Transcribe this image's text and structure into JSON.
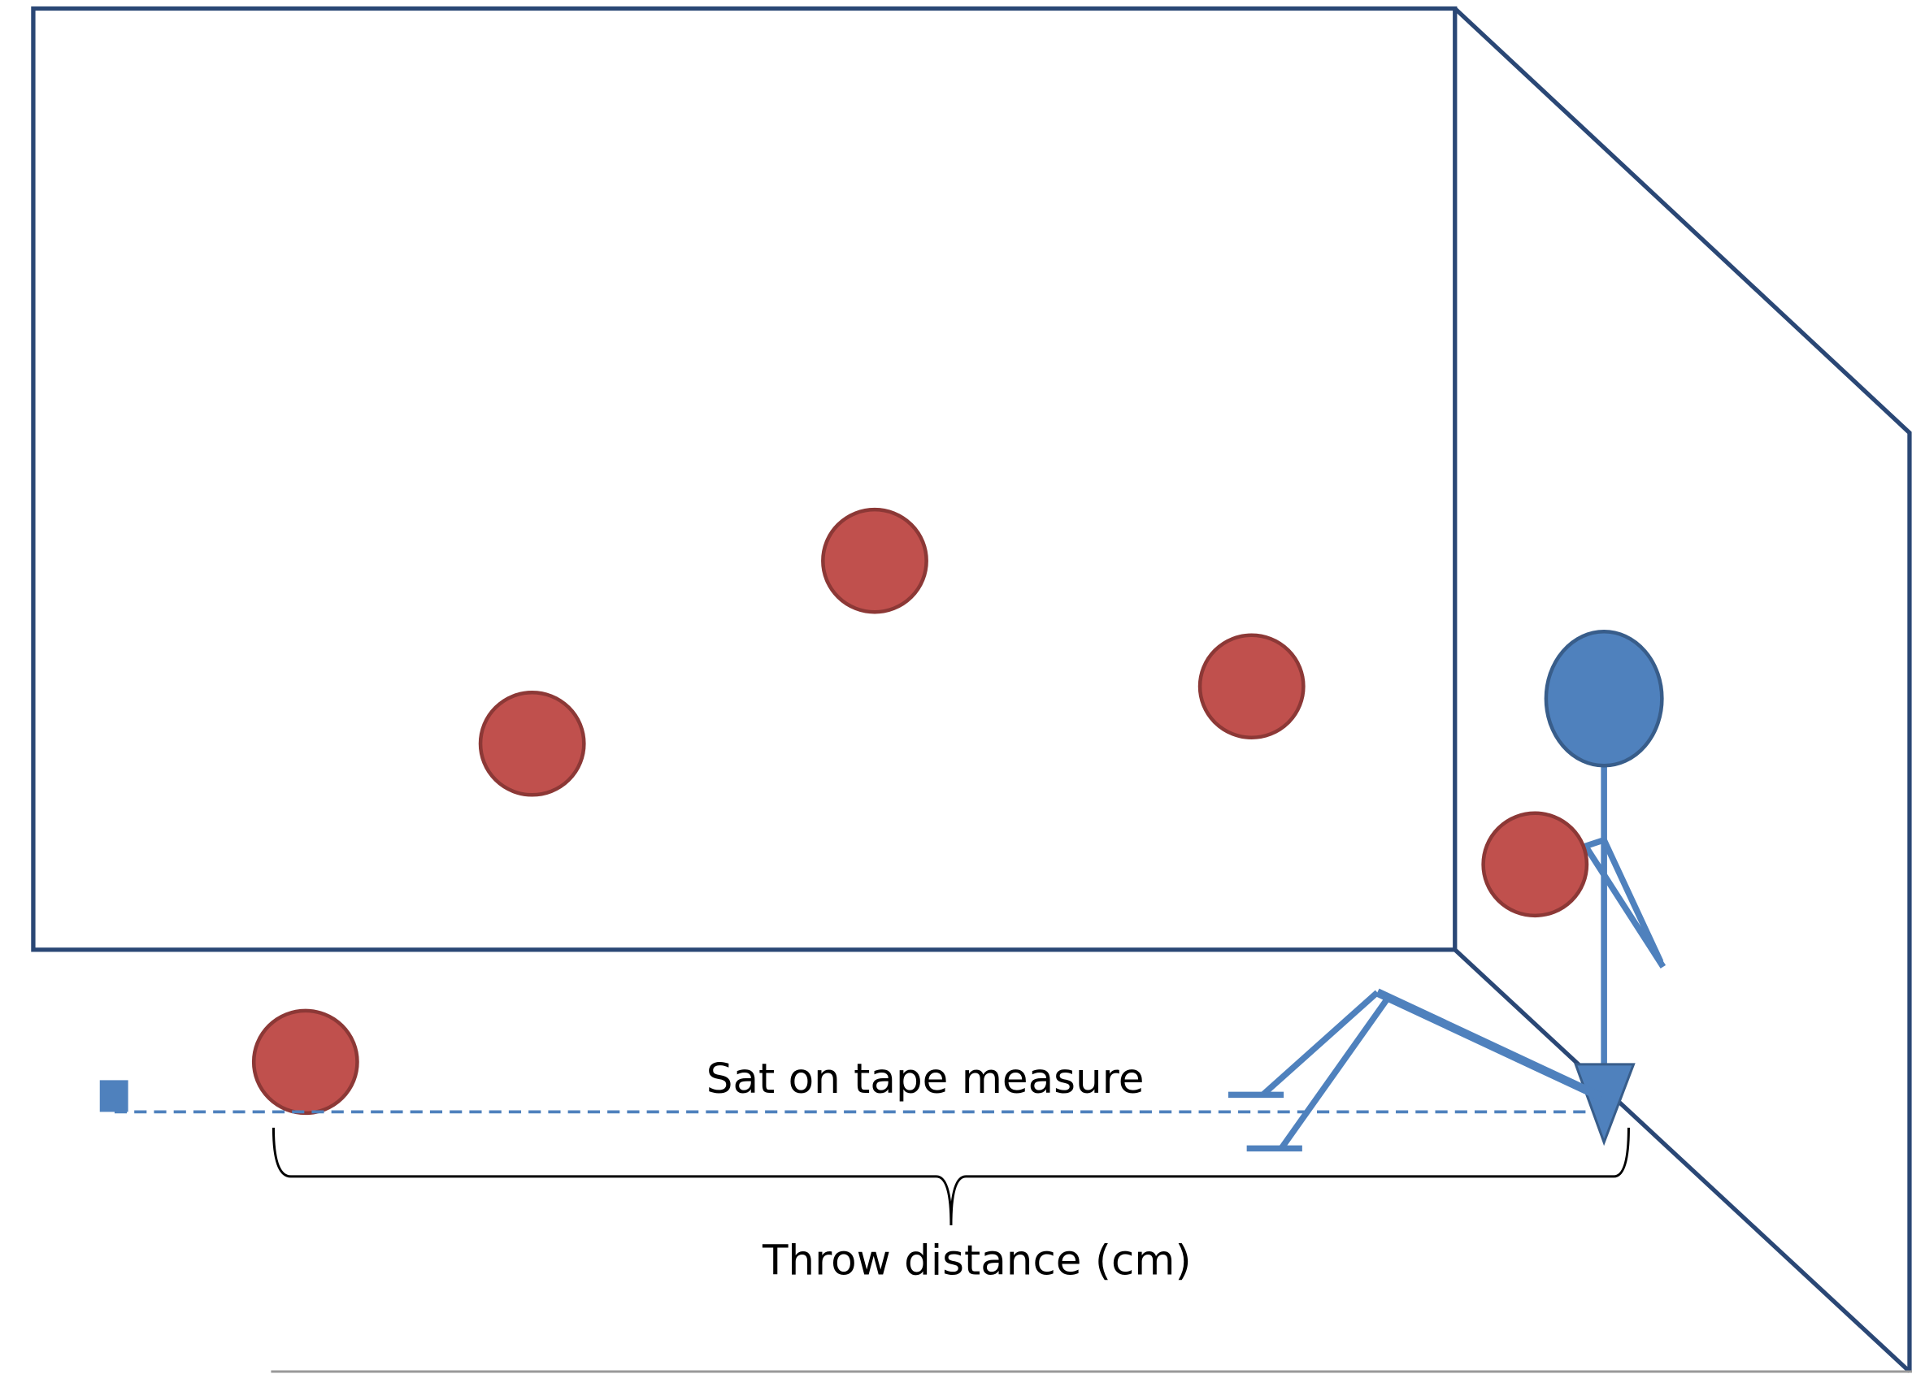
{
  "labels": {
    "tape": "Sat on tape measure",
    "distance": "Throw distance (cm)"
  }
}
